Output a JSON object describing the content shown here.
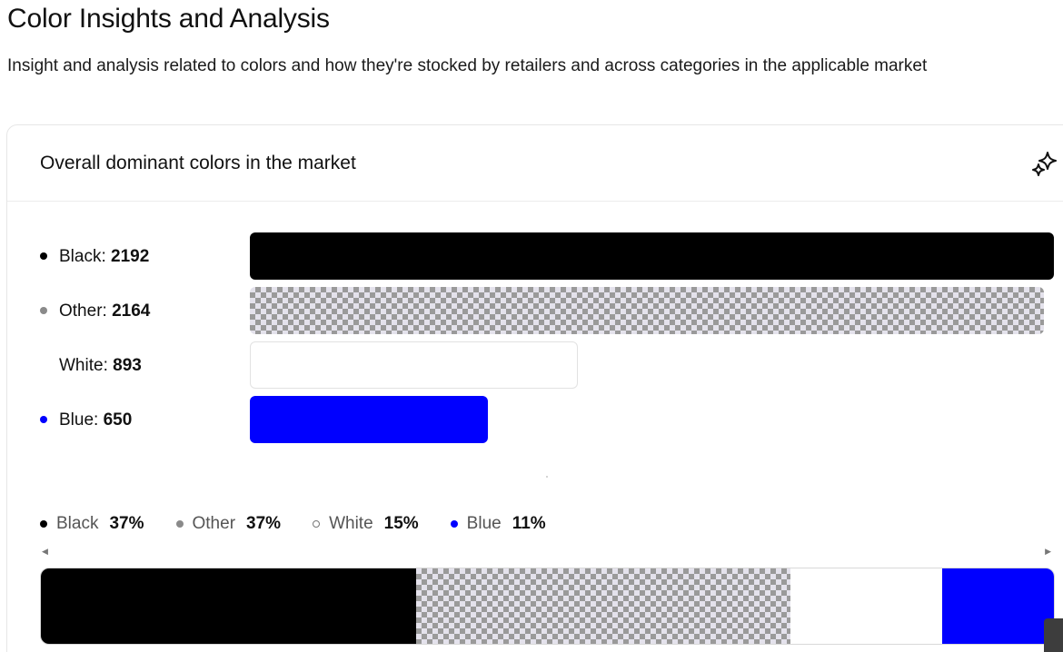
{
  "page": {
    "title": "Color Insights and Analysis",
    "subtitle": "Insight and analysis related to colors and how they're stocked by retailers and across categories in the applicable market"
  },
  "card": {
    "title": "Overall dominant colors in the market",
    "action_icon": "sparkle-icon"
  },
  "chart_data": [
    {
      "type": "bar",
      "orientation": "horizontal",
      "categories": [
        "Black",
        "Other",
        "White",
        "Blue"
      ],
      "values": [
        2192,
        2164,
        893,
        650
      ],
      "colors": [
        "#000000",
        "pattern-checker-grey",
        "#ffffff",
        "#0000ff"
      ],
      "grid": false
    },
    {
      "type": "bar",
      "orientation": "stacked-100",
      "categories": [
        "Black",
        "Other",
        "White",
        "Blue"
      ],
      "values": [
        37,
        37,
        15,
        11
      ],
      "unit": "%",
      "colors": [
        "#000000",
        "pattern-checker-grey",
        "#ffffff",
        "#0000ff"
      ],
      "legend_position": "top-left"
    }
  ],
  "rows": [
    {
      "name": "Black",
      "label": "Black: ",
      "value": "2192",
      "dot": "#000000",
      "color": "#000000"
    },
    {
      "name": "Other",
      "label": "Other: ",
      "value": "2164",
      "dot": "#8a8a8a",
      "color": "pattern"
    },
    {
      "name": "White",
      "label": "White: ",
      "value": "893",
      "dot": "",
      "color": "#ffffff"
    },
    {
      "name": "Blue",
      "label": "Blue: ",
      "value": "650",
      "dot": "#0000ff",
      "color": "#0000ff"
    }
  ],
  "legend": [
    {
      "name": "Black",
      "pct": "37%",
      "dot": "#000000",
      "hollow": false
    },
    {
      "name": "Other",
      "pct": "37%",
      "dot": "#8a8a8a",
      "hollow": false
    },
    {
      "name": "White",
      "pct": "15%",
      "dot": "#ffffff",
      "hollow": true
    },
    {
      "name": "Blue",
      "pct": "11%",
      "dot": "#0000ff",
      "hollow": false
    }
  ],
  "scroll": {
    "left_icon": "arrow-left-icon",
    "right_icon": "arrow-right-icon",
    "left_glyph": "◀",
    "right_glyph": "▶"
  }
}
